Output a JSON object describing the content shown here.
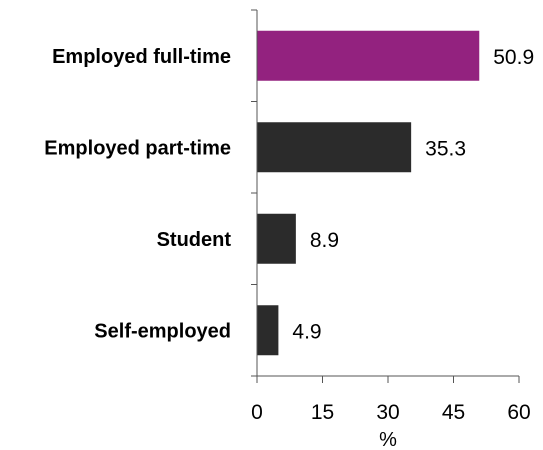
{
  "chart_data": {
    "type": "bar",
    "orientation": "horizontal",
    "categories": [
      "Employed full-time",
      "Employed part-time",
      "Student",
      "Self-employed"
    ],
    "values": [
      50.9,
      35.3,
      8.9,
      4.9
    ],
    "data_labels": [
      "50.9",
      "35.3",
      "8.9",
      "4.9"
    ],
    "bar_colors": [
      "#93227f",
      "#2b2b2b",
      "#2b2b2b",
      "#2b2b2b"
    ],
    "xlim": [
      0,
      60
    ],
    "xticks": [
      0,
      15,
      30,
      45,
      60
    ],
    "xtick_labels": [
      "0",
      "15",
      "30",
      "45",
      "60"
    ],
    "xlabel": "%",
    "ylabel": "",
    "title": "",
    "grid": false,
    "legend": "none"
  }
}
